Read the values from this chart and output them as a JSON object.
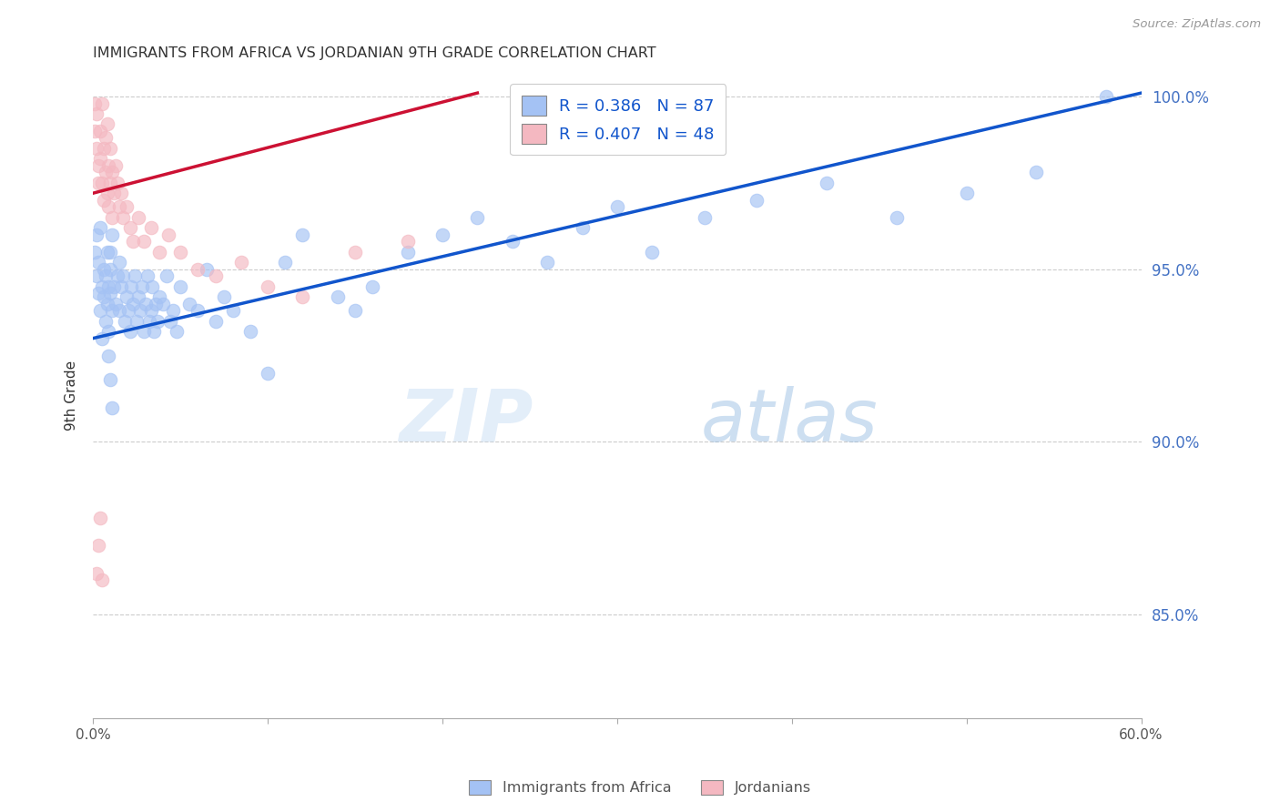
{
  "title": "IMMIGRANTS FROM AFRICA VS JORDANIAN 9TH GRADE CORRELATION CHART",
  "source": "Source: ZipAtlas.com",
  "ylabel": "9th Grade",
  "x_min": 0.0,
  "x_max": 0.6,
  "y_min": 0.82,
  "y_max": 1.007,
  "x_ticks": [
    0.0,
    0.1,
    0.2,
    0.3,
    0.4,
    0.5,
    0.6
  ],
  "x_tick_labels": [
    "0.0%",
    "",
    "",
    "",
    "",
    "",
    "60.0%"
  ],
  "y_ticks": [
    0.85,
    0.9,
    0.95,
    1.0
  ],
  "y_tick_labels": [
    "85.0%",
    "90.0%",
    "95.0%",
    "100.0%"
  ],
  "blue_color": "#a4c2f4",
  "pink_color": "#f4b8c1",
  "blue_line_color": "#1155cc",
  "pink_line_color": "#cc1133",
  "legend_R_blue": "R = 0.386",
  "legend_N_blue": "N = 87",
  "legend_R_pink": "R = 0.407",
  "legend_N_pink": "N = 48",
  "watermark_zip": "ZIP",
  "watermark_atlas": "atlas",
  "blue_line_x0": 0.0,
  "blue_line_y0": 0.93,
  "blue_line_x1": 0.6,
  "blue_line_y1": 1.001,
  "pink_line_x0": 0.0,
  "pink_line_y0": 0.972,
  "pink_line_x1": 0.22,
  "pink_line_y1": 1.001,
  "blue_scatter_x": [
    0.001,
    0.002,
    0.002,
    0.003,
    0.003,
    0.004,
    0.004,
    0.005,
    0.005,
    0.006,
    0.006,
    0.007,
    0.007,
    0.008,
    0.008,
    0.009,
    0.009,
    0.01,
    0.01,
    0.01,
    0.011,
    0.011,
    0.012,
    0.013,
    0.014,
    0.015,
    0.015,
    0.016,
    0.017,
    0.018,
    0.019,
    0.02,
    0.021,
    0.022,
    0.023,
    0.024,
    0.025,
    0.026,
    0.027,
    0.028,
    0.029,
    0.03,
    0.031,
    0.032,
    0.033,
    0.034,
    0.035,
    0.036,
    0.037,
    0.038,
    0.04,
    0.042,
    0.044,
    0.046,
    0.048,
    0.05,
    0.055,
    0.06,
    0.065,
    0.07,
    0.075,
    0.08,
    0.09,
    0.1,
    0.11,
    0.12,
    0.14,
    0.15,
    0.16,
    0.18,
    0.2,
    0.22,
    0.24,
    0.26,
    0.28,
    0.3,
    0.32,
    0.35,
    0.38,
    0.42,
    0.46,
    0.5,
    0.54,
    0.58,
    0.009,
    0.01,
    0.011
  ],
  "blue_scatter_y": [
    0.955,
    0.948,
    0.96,
    0.952,
    0.943,
    0.962,
    0.938,
    0.945,
    0.93,
    0.95,
    0.942,
    0.948,
    0.935,
    0.955,
    0.94,
    0.945,
    0.932,
    0.95,
    0.943,
    0.955,
    0.938,
    0.96,
    0.945,
    0.94,
    0.948,
    0.938,
    0.952,
    0.945,
    0.948,
    0.935,
    0.942,
    0.938,
    0.932,
    0.945,
    0.94,
    0.948,
    0.935,
    0.942,
    0.938,
    0.945,
    0.932,
    0.94,
    0.948,
    0.935,
    0.938,
    0.945,
    0.932,
    0.94,
    0.935,
    0.942,
    0.94,
    0.948,
    0.935,
    0.938,
    0.932,
    0.945,
    0.94,
    0.938,
    0.95,
    0.935,
    0.942,
    0.938,
    0.932,
    0.92,
    0.952,
    0.96,
    0.942,
    0.938,
    0.945,
    0.955,
    0.96,
    0.965,
    0.958,
    0.952,
    0.962,
    0.968,
    0.955,
    0.965,
    0.97,
    0.975,
    0.965,
    0.972,
    0.978,
    1.0,
    0.925,
    0.918,
    0.91
  ],
  "pink_scatter_x": [
    0.001,
    0.001,
    0.002,
    0.002,
    0.003,
    0.003,
    0.004,
    0.004,
    0.005,
    0.005,
    0.006,
    0.006,
    0.007,
    0.007,
    0.008,
    0.008,
    0.009,
    0.009,
    0.01,
    0.01,
    0.011,
    0.011,
    0.012,
    0.013,
    0.014,
    0.015,
    0.016,
    0.017,
    0.019,
    0.021,
    0.023,
    0.026,
    0.029,
    0.033,
    0.038,
    0.043,
    0.05,
    0.06,
    0.07,
    0.085,
    0.1,
    0.12,
    0.15,
    0.18,
    0.002,
    0.003,
    0.004,
    0.005
  ],
  "pink_scatter_y": [
    0.998,
    0.99,
    0.985,
    0.995,
    0.98,
    0.975,
    0.99,
    0.982,
    0.998,
    0.975,
    0.985,
    0.97,
    0.988,
    0.978,
    0.992,
    0.972,
    0.98,
    0.968,
    0.985,
    0.975,
    0.978,
    0.965,
    0.972,
    0.98,
    0.975,
    0.968,
    0.972,
    0.965,
    0.968,
    0.962,
    0.958,
    0.965,
    0.958,
    0.962,
    0.955,
    0.96,
    0.955,
    0.95,
    0.948,
    0.952,
    0.945,
    0.942,
    0.955,
    0.958,
    0.862,
    0.87,
    0.878,
    0.86
  ]
}
